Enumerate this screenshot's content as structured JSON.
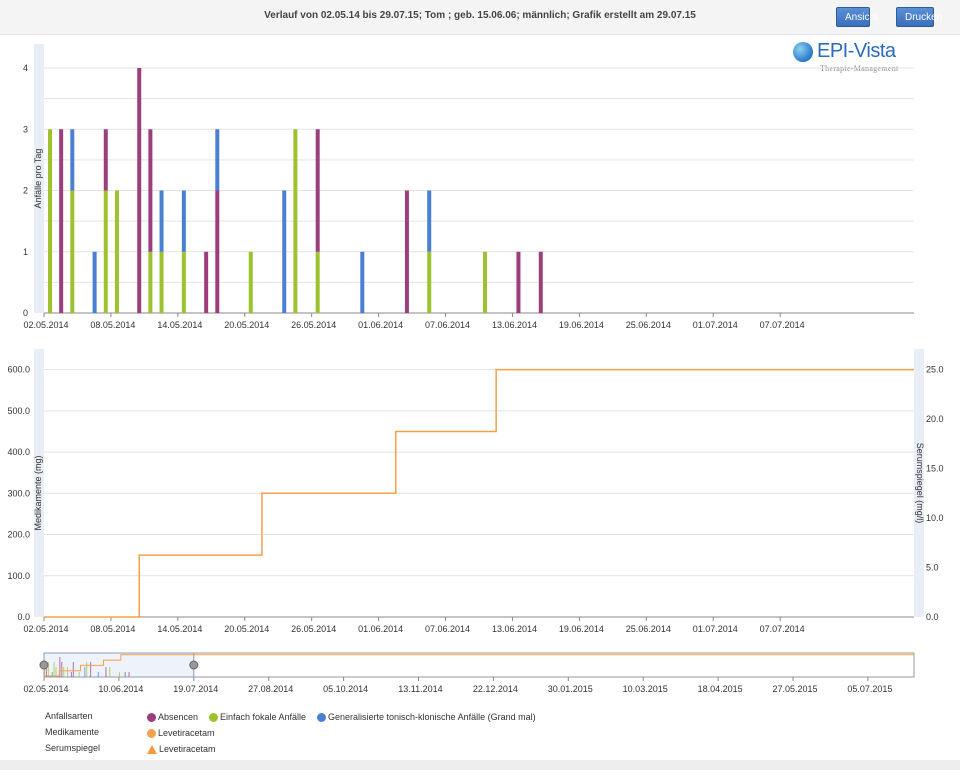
{
  "header": {
    "title": "Verlauf von 02.05.14 bis 29.07.15;   Tom ; geb. 15.06.06; männlich; Grafik erstellt am 29.07.15",
    "buttons": {
      "ansicht": "Ansicht",
      "drucken": "Drucken"
    }
  },
  "logo": {
    "name": "EPI-Vista",
    "subtitle": "Therapie-Management"
  },
  "colors": {
    "absencen": "#9b3e7c",
    "einfach": "#9dc22e",
    "grandmal": "#4a7fd4",
    "medication": "#f5a04a",
    "grid": "#e3e3e3",
    "band": "#e8edf6"
  },
  "chart_data": [
    {
      "type": "bar",
      "stacked": true,
      "ylabel": "Anfälle pro Tag",
      "ylim": [
        0,
        4
      ],
      "yticks": [
        "0",
        "1",
        "2",
        "3",
        "4"
      ],
      "x_start": "2014-05-02",
      "x_end": "2014-07-19",
      "xticks": [
        "02.05.2014",
        "08.05.2014",
        "14.05.2014",
        "20.05.2014",
        "26.05.2014",
        "01.06.2014",
        "07.06.2014",
        "13.06.2014",
        "19.06.2014",
        "25.06.2014",
        "01.07.2014",
        "07.07.2014"
      ],
      "bars": [
        {
          "date": "2014-05-02",
          "einfach": 3,
          "absencen": 0,
          "grandmal": 0
        },
        {
          "date": "2014-05-03",
          "einfach": 0,
          "absencen": 3,
          "grandmal": 0
        },
        {
          "date": "2014-05-04",
          "einfach": 2,
          "absencen": 0,
          "grandmal": 1
        },
        {
          "date": "2014-05-06",
          "einfach": 0,
          "absencen": 0,
          "grandmal": 1
        },
        {
          "date": "2014-05-07",
          "einfach": 2,
          "absencen": 1,
          "grandmal": 0
        },
        {
          "date": "2014-05-08",
          "einfach": 2,
          "absencen": 0,
          "grandmal": 0
        },
        {
          "date": "2014-05-10",
          "einfach": 0,
          "absencen": 4,
          "grandmal": 0
        },
        {
          "date": "2014-05-11",
          "einfach": 1,
          "absencen": 2,
          "grandmal": 0
        },
        {
          "date": "2014-05-12",
          "einfach": 1,
          "absencen": 0,
          "grandmal": 1
        },
        {
          "date": "2014-05-14",
          "einfach": 1,
          "absencen": 0,
          "grandmal": 1
        },
        {
          "date": "2014-05-16",
          "einfach": 0,
          "absencen": 1,
          "grandmal": 0
        },
        {
          "date": "2014-05-17",
          "einfach": 0,
          "absencen": 2,
          "grandmal": 1
        },
        {
          "date": "2014-05-20",
          "einfach": 1,
          "absencen": 0,
          "grandmal": 0
        },
        {
          "date": "2014-05-23",
          "einfach": 0,
          "absencen": 0,
          "grandmal": 2
        },
        {
          "date": "2014-05-24",
          "einfach": 3,
          "absencen": 0,
          "grandmal": 0
        },
        {
          "date": "2014-05-26",
          "einfach": 1,
          "absencen": 2,
          "grandmal": 0
        },
        {
          "date": "2014-05-30",
          "einfach": 0,
          "absencen": 0,
          "grandmal": 1
        },
        {
          "date": "2014-06-03",
          "einfach": 0,
          "absencen": 2,
          "grandmal": 0
        },
        {
          "date": "2014-06-05",
          "einfach": 1,
          "absencen": 0,
          "grandmal": 1
        },
        {
          "date": "2014-06-10",
          "einfach": 1,
          "absencen": 0,
          "grandmal": 0
        },
        {
          "date": "2014-06-13",
          "einfach": 0,
          "absencen": 1,
          "grandmal": 0
        },
        {
          "date": "2014-06-15",
          "einfach": 0,
          "absencen": 1,
          "grandmal": 0
        }
      ]
    },
    {
      "type": "line",
      "step": true,
      "ylabel": "Medikamente (mg)",
      "y2label": "Serumspiegel (mg/l)",
      "ylim": [
        0,
        650
      ],
      "yticks": [
        "0.0",
        "100.0",
        "200.0",
        "300.0",
        "400.0",
        "500.0",
        "600.0"
      ],
      "y2lim": [
        0,
        27.08
      ],
      "y2ticks": [
        "0.0",
        "5.0",
        "10.0",
        "15.0",
        "20.0",
        "25.0"
      ],
      "x_start": "2014-05-02",
      "x_end": "2014-07-19",
      "xticks": [
        "02.05.2014",
        "08.05.2014",
        "14.05.2014",
        "20.05.2014",
        "26.05.2014",
        "01.06.2014",
        "07.06.2014",
        "13.06.2014",
        "19.06.2014",
        "25.06.2014",
        "01.07.2014",
        "07.07.2014"
      ],
      "series": [
        {
          "name": "Levetiracetam",
          "points": [
            [
              "2014-05-02",
              0
            ],
            [
              "2014-05-10",
              150
            ],
            [
              "2014-05-21",
              300
            ],
            [
              "2014-06-02",
              450
            ],
            [
              "2014-06-11",
              600
            ],
            [
              "2014-07-19",
              600
            ]
          ]
        }
      ]
    },
    {
      "type": "navigator",
      "x_start": "2014-05-02",
      "x_end": "2015-07-29",
      "xticks": [
        "02.05.2014",
        "10.06.2014",
        "19.07.2014",
        "27.08.2014",
        "05.10.2014",
        "13.11.2014",
        "22.12.2014",
        "30.01.2015",
        "10.03.2015",
        "18.04.2015",
        "27.05.2015",
        "05.07.2015"
      ],
      "selection": [
        "2014-05-02",
        "2014-07-19"
      ]
    }
  ],
  "legend": {
    "rows": [
      {
        "label": "Anfallsarten",
        "items": [
          "Absencen",
          "Einfach fokale Anfälle",
          "Generalisierte tonisch-klonische Anfälle (Grand mal)"
        ]
      },
      {
        "label": "Medikamente",
        "items": [
          "Levetiracetam"
        ]
      },
      {
        "label": "Serumspiegel",
        "items": [
          "Levetiracetam"
        ]
      }
    ]
  }
}
